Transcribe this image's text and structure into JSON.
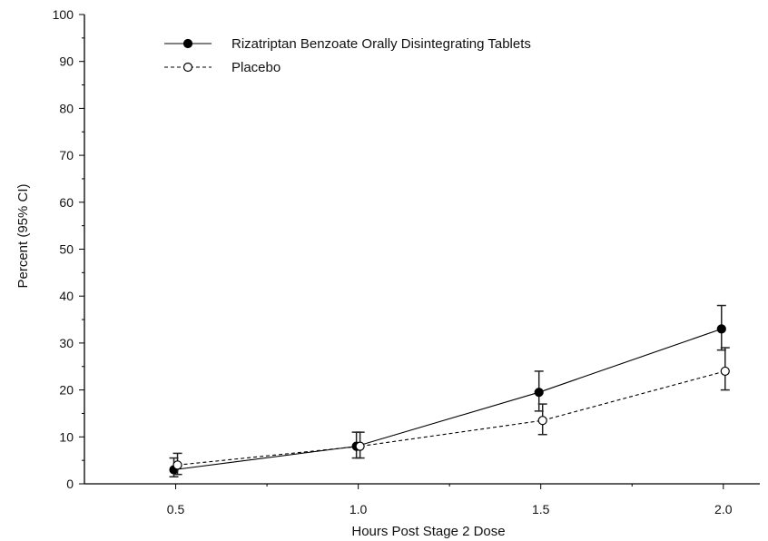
{
  "chart_data": {
    "type": "line",
    "title": "",
    "xlabel": "Hours Post Stage 2 Dose",
    "ylabel": "Percent (95% CI)",
    "x": [
      0.5,
      1.0,
      1.5,
      2.0
    ],
    "x_tick_labels": [
      "0.5",
      "1.0",
      "1.5",
      "2.0"
    ],
    "xlim": [
      0.25,
      2.1
    ],
    "ylim": [
      0,
      100
    ],
    "y_ticks": [
      0,
      10,
      20,
      30,
      40,
      50,
      60,
      70,
      80,
      90,
      100
    ],
    "grid": false,
    "legend_position": "top-left",
    "series": [
      {
        "name": "Rizatriptan Benzoate Orally Disintegrating Tablets",
        "marker": "filled-circle",
        "line_style": "solid",
        "color": "#000000",
        "values": [
          3,
          8,
          19.5,
          33
        ],
        "ci_low": [
          1.5,
          5.5,
          15.5,
          28.5
        ],
        "ci_high": [
          5.5,
          11.0,
          24.0,
          38.0
        ]
      },
      {
        "name": "Placebo",
        "marker": "open-circle",
        "line_style": "dashed",
        "color": "#000000",
        "values": [
          4,
          8,
          13.5,
          24
        ],
        "ci_low": [
          2.0,
          5.5,
          10.5,
          20.0
        ],
        "ci_high": [
          6.5,
          11.0,
          17.0,
          29.0
        ]
      }
    ]
  }
}
